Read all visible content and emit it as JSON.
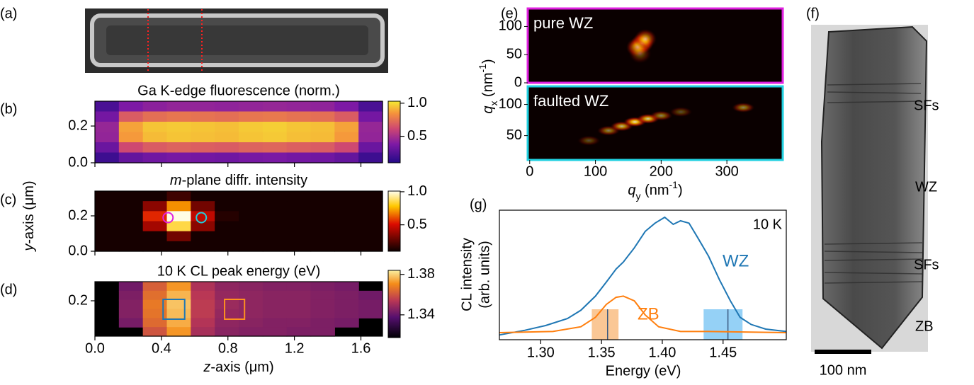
{
  "chart_data": [
    {
      "type": "image",
      "label": "(a)"
    },
    {
      "type": "heatmap",
      "label": "(b)",
      "title": "Ga K-edge fluorescence (norm.)",
      "colormap": "plasma",
      "xlim": [
        0,
        1.73
      ],
      "ylim": [
        0,
        0.335
      ],
      "yticks": [
        {
          "value": 0,
          "label": "0.0"
        },
        0.2
      ],
      "clim": [
        0.1,
        1.03
      ],
      "cticks": [
        0.5,
        {
          "value": 1,
          "label": "1.0"
        }
      ],
      "values": [
        [
          0.22,
          0.38,
          0.42,
          0.44,
          0.44,
          0.43,
          0.44,
          0.45,
          0.44,
          0.43,
          0.38,
          0.22
        ],
        [
          0.35,
          0.68,
          0.74,
          0.76,
          0.75,
          0.74,
          0.76,
          0.77,
          0.75,
          0.74,
          0.68,
          0.35
        ],
        [
          0.45,
          0.88,
          0.95,
          0.96,
          0.95,
          0.94,
          0.96,
          0.97,
          0.95,
          0.94,
          0.88,
          0.45
        ],
        [
          0.44,
          0.86,
          0.93,
          0.95,
          0.94,
          0.93,
          0.95,
          0.96,
          0.94,
          0.93,
          0.86,
          0.44
        ],
        [
          0.32,
          0.62,
          0.68,
          0.7,
          0.69,
          0.68,
          0.7,
          0.71,
          0.69,
          0.68,
          0.62,
          0.32
        ],
        [
          0.18,
          0.3,
          0.34,
          0.36,
          0.35,
          0.34,
          0.36,
          0.37,
          0.35,
          0.34,
          0.3,
          0.18
        ]
      ]
    },
    {
      "type": "heatmap",
      "label": "(c)",
      "title": [
        "m",
        "-plane diffr. intensity"
      ],
      "ylabel": [
        "y",
        "-axis (μm)"
      ],
      "colormap": "hot",
      "xlim": [
        0,
        1.73
      ],
      "ylim": [
        0,
        0.34
      ],
      "yticks": [
        {
          "value": 0,
          "label": "0.0"
        },
        0.2
      ],
      "clim": [
        0.1,
        1.01
      ],
      "cticks": [
        0.5,
        {
          "value": 1,
          "label": "1.0"
        }
      ],
      "values": [
        [
          0.12,
          0.12,
          0.12,
          0.2,
          0.12,
          0.12,
          0.12,
          0.12,
          0.12,
          0.12,
          0.12,
          0.12
        ],
        [
          0.12,
          0.12,
          0.35,
          0.7,
          0.3,
          0.12,
          0.12,
          0.12,
          0.12,
          0.12,
          0.12,
          0.12
        ],
        [
          0.12,
          0.12,
          0.55,
          1.0,
          0.45,
          0.15,
          0.12,
          0.12,
          0.12,
          0.12,
          0.12,
          0.12
        ],
        [
          0.12,
          0.12,
          0.4,
          0.85,
          0.35,
          0.12,
          0.12,
          0.12,
          0.12,
          0.12,
          0.12,
          0.12
        ],
        [
          0.12,
          0.12,
          0.12,
          0.3,
          0.12,
          0.12,
          0.12,
          0.12,
          0.12,
          0.12,
          0.12,
          0.12
        ],
        [
          0.12,
          0.12,
          0.12,
          0.12,
          0.12,
          0.12,
          0.12,
          0.12,
          0.12,
          0.12,
          0.12,
          0.12
        ]
      ],
      "markers": [
        {
          "x": 0.44,
          "y": 0.19,
          "color": "#e020e0"
        },
        {
          "x": 0.64,
          "y": 0.19,
          "color": "#20d0e0"
        }
      ]
    },
    {
      "type": "heatmap",
      "label": "(d)",
      "title": "10 K CL peak energy (eV)",
      "xlabel": [
        "z",
        "-axis (μm)"
      ],
      "colormap": "inferno",
      "xlim": [
        0,
        1.73
      ],
      "ylim": [
        0,
        0.308
      ],
      "xticks": [
        {
          "value": 0,
          "label": "0.0"
        },
        0.4,
        0.8,
        1.2,
        1.6
      ],
      "yticks": [
        0.2
      ],
      "clim": [
        1.3175,
        1.384
      ],
      "cticks": [
        1.34,
        1.38
      ],
      "values": [
        [
          null,
          1.342,
          1.362,
          1.372,
          1.352,
          1.347,
          1.346,
          1.345,
          1.345,
          1.344,
          1.343,
          null
        ],
        [
          null,
          1.344,
          1.365,
          1.376,
          1.354,
          1.348,
          1.347,
          1.346,
          1.346,
          1.345,
          1.344,
          1.342
        ],
        [
          null,
          1.345,
          1.367,
          1.378,
          1.355,
          1.349,
          1.347,
          1.346,
          1.346,
          1.345,
          1.344,
          1.343
        ],
        [
          null,
          1.345,
          1.366,
          1.377,
          1.355,
          1.348,
          1.347,
          1.346,
          1.346,
          1.345,
          1.344,
          1.343
        ],
        [
          null,
          1.343,
          1.364,
          1.375,
          1.353,
          1.347,
          1.346,
          1.345,
          1.345,
          1.344,
          1.343,
          null
        ],
        [
          null,
          null,
          1.36,
          1.372,
          1.351,
          1.346,
          1.345,
          1.345,
          1.344,
          1.344,
          null,
          null
        ]
      ],
      "markers": [
        {
          "x": [
            0.41,
            0.54
          ],
          "y": [
            0.096,
            0.208
          ],
          "color": "#1f77b4"
        },
        {
          "x": [
            0.78,
            0.9
          ],
          "y": [
            0.096,
            0.208
          ],
          "color": "#ff9020"
        }
      ]
    },
    {
      "type": "diffraction",
      "label": "(e)",
      "xlabel": [
        "q",
        "y",
        " (nm",
        "-1",
        ")"
      ],
      "ylabel": [
        "q",
        "x",
        " (nm",
        "-1",
        ")"
      ],
      "xlim": [
        -3,
        385
      ],
      "xticks": [
        0,
        100,
        200,
        300
      ],
      "panels": [
        {
          "name": "pure WZ",
          "border": "#e020e0",
          "ylim": [
            0,
            132
          ],
          "yticks": [
            0,
            50,
            100
          ],
          "spots": [
            {
              "qy": 171,
              "qx": 70,
              "intensity": 1
            },
            {
              "qy": 164,
              "qx": 63,
              "intensity": 0.7
            },
            {
              "qy": 176,
              "qx": 78,
              "intensity": 0.6
            },
            {
              "qy": 168,
              "qx": 52,
              "intensity": 0.3
            }
          ]
        },
        {
          "name": "faulted WZ",
          "border": "#20d0e0",
          "ylim": [
            11,
            129
          ],
          "yticks": [
            50,
            100
          ],
          "spots": [
            {
              "qy": 90,
              "qx": 42,
              "intensity": 0.3
            },
            {
              "qy": 120,
              "qx": 58,
              "intensity": 0.5
            },
            {
              "qy": 140,
              "qx": 65,
              "intensity": 0.7
            },
            {
              "qy": 160,
              "qx": 72,
              "intensity": 0.9
            },
            {
              "qy": 180,
              "qx": 77,
              "intensity": 0.8
            },
            {
              "qy": 200,
              "qx": 82,
              "intensity": 0.5
            },
            {
              "qy": 230,
              "qx": 88,
              "intensity": 0.3
            },
            {
              "qy": 325,
              "qx": 95,
              "intensity": 0.5
            }
          ]
        }
      ]
    },
    {
      "type": "line",
      "label": "(g)",
      "xlabel": "Energy (eV)",
      "ylabel": [
        "CL intensity",
        "(arb. units)"
      ],
      "annotation": "10 K",
      "xlim": [
        1.266,
        1.502
      ],
      "ylim": [
        0,
        1.1
      ],
      "xticks": [
        {
          "value": 1.3,
          "label": "1.30"
        },
        1.35,
        {
          "value": 1.4,
          "label": "1.40"
        },
        1.45
      ],
      "series": [
        {
          "name": "WZ",
          "color": "#1f77b4",
          "x": [
            1.266,
            1.287,
            1.304,
            1.322,
            1.333,
            1.345,
            1.354,
            1.362,
            1.368,
            1.377,
            1.386,
            1.394,
            1.402,
            1.409,
            1.415,
            1.422,
            1.429,
            1.438,
            1.447,
            1.456,
            1.464,
            1.473,
            1.485,
            1.502
          ],
          "values": [
            0.04,
            0.08,
            0.12,
            0.18,
            0.25,
            0.37,
            0.49,
            0.6,
            0.66,
            0.78,
            0.92,
            0.99,
            1.04,
            0.98,
            1.01,
            0.99,
            0.87,
            0.71,
            0.51,
            0.33,
            0.19,
            0.13,
            0.09,
            0.07
          ]
        },
        {
          "name": "ZB",
          "color": "#ff7f0e",
          "x": [
            1.266,
            1.31,
            1.333,
            1.345,
            1.354,
            1.362,
            1.368,
            1.377,
            1.386,
            1.397,
            1.415,
            1.438,
            1.502
          ],
          "values": [
            0.06,
            0.07,
            0.11,
            0.19,
            0.3,
            0.36,
            0.37,
            0.33,
            0.21,
            0.11,
            0.07,
            0.07,
            0.06
          ]
        }
      ],
      "bands": [
        {
          "range": [
            1.342,
            1.364
          ],
          "line": 1.355,
          "color": "#f7a24f"
        },
        {
          "range": [
            1.434,
            1.466
          ],
          "line": 1.454,
          "color": "#4fb3f0"
        }
      ]
    },
    {
      "type": "image",
      "label": "(f)",
      "annotations": [
        "SFs",
        "WZ",
        "SFs",
        "ZB"
      ],
      "scalebar": "100 nm"
    }
  ]
}
